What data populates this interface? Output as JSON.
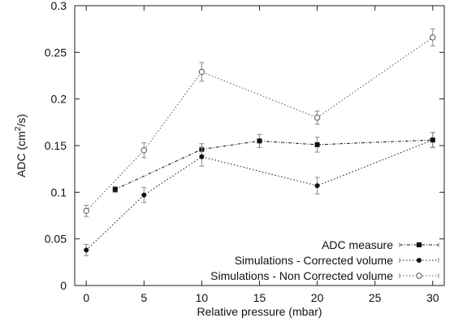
{
  "chart_data": {
    "type": "line",
    "xlabel": "Relative pressure (mbar)",
    "ylabel": {
      "prefix": "ADC (cm",
      "sup": "2",
      "suffix": "/s)"
    },
    "xlim": [
      -1,
      31
    ],
    "ylim": [
      0,
      0.3
    ],
    "xticks": [
      0,
      5,
      10,
      15,
      20,
      25,
      30
    ],
    "yticks": [
      0,
      0.05,
      0.1,
      0.15,
      0.2,
      0.25,
      0.3
    ],
    "ytick_labels": [
      "0",
      "0.05",
      "0.1",
      "0.15",
      "0.2",
      "0.25",
      "0.3"
    ],
    "grid": false,
    "legend_position": "bottom-right",
    "series": [
      {
        "name": "ADC measure",
        "marker": "filled-square",
        "line_style": "dash-dot",
        "color": "#111111",
        "points": [
          {
            "x": 2.5,
            "y": 0.103,
            "err": 0.003
          },
          {
            "x": 10,
            "y": 0.146,
            "err": 0.006
          },
          {
            "x": 15,
            "y": 0.155,
            "err": 0.007
          },
          {
            "x": 20,
            "y": 0.151,
            "err": 0.008
          },
          {
            "x": 30,
            "y": 0.156,
            "err": 0.008
          }
        ]
      },
      {
        "name": "Simulations - Corrected volume",
        "marker": "filled-circle",
        "line_style": "dotted",
        "color": "#111111",
        "points": [
          {
            "x": 0,
            "y": 0.038,
            "err": 0.006
          },
          {
            "x": 5,
            "y": 0.097,
            "err": 0.008
          },
          {
            "x": 10,
            "y": 0.138,
            "err": 0.01
          },
          {
            "x": 20,
            "y": 0.107,
            "err": 0.009
          },
          {
            "x": 30,
            "y": 0.156,
            "err": 0.008
          }
        ]
      },
      {
        "name": "Simulations - Non Corrected volume",
        "marker": "open-circle",
        "line_style": "dotted",
        "color": "#555555",
        "points": [
          {
            "x": 0,
            "y": 0.08,
            "err": 0.006
          },
          {
            "x": 5,
            "y": 0.145,
            "err": 0.008
          },
          {
            "x": 10,
            "y": 0.229,
            "err": 0.01
          },
          {
            "x": 20,
            "y": 0.18,
            "err": 0.007
          },
          {
            "x": 30,
            "y": 0.266,
            "err": 0.009
          }
        ]
      }
    ]
  }
}
